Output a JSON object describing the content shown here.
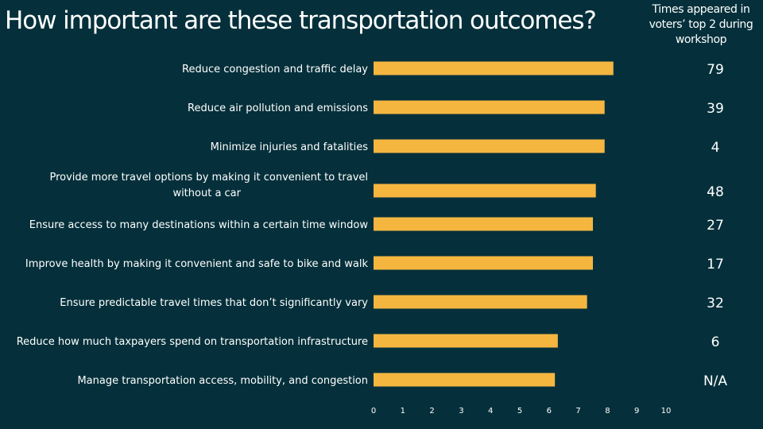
{
  "header": {
    "title": "How important are these transportation outcomes?",
    "side_header": "Times appeared in voters’ top 2 during workshop"
  },
  "colors": {
    "background": "#05303b",
    "bar": "#f5b640",
    "text": "#ffffff"
  },
  "chart_data": {
    "type": "bar",
    "orientation": "horizontal",
    "categories": [
      [
        "Reduce congestion and traffic delay"
      ],
      [
        "Reduce air pollution and emissions"
      ],
      [
        "Minimize injuries and fatalities"
      ],
      [
        "Provide more travel options by making it convenient to travel",
        "without a car"
      ],
      [
        "Ensure access to many destinations within a certain time window"
      ],
      [
        "Improve health by making it convenient and safe to bike and walk"
      ],
      [
        "Ensure predictable travel times that don’t significantly vary"
      ],
      [
        "Reduce how much taxpayers spend on transportation infrastructure"
      ],
      [
        "Manage transportation access, mobility, and congestion"
      ]
    ],
    "values": [
      8.2,
      7.9,
      7.9,
      7.6,
      7.5,
      7.5,
      7.3,
      6.3,
      6.2
    ],
    "top2_counts": [
      "79",
      "39",
      "4",
      "48",
      "27",
      "17",
      "32",
      "6",
      "N/A"
    ],
    "xlim": [
      0,
      10
    ],
    "xticks": [
      "0",
      "1",
      "2",
      "3",
      "4",
      "5",
      "6",
      "7",
      "8",
      "9",
      "10"
    ],
    "grid": false,
    "legend": false
  }
}
